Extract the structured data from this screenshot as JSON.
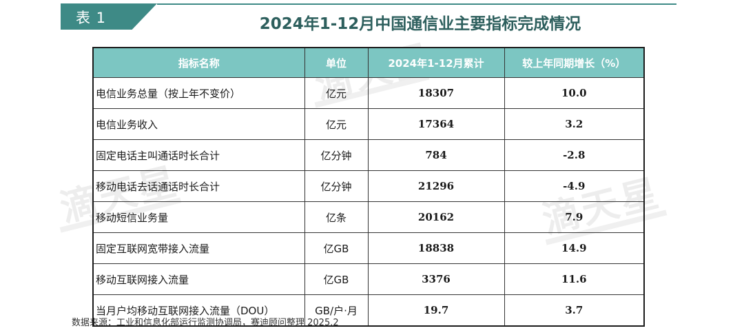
{
  "tag_label": "表 1",
  "title": "2024年1-12月中国通信业主要指标完成情况",
  "headers": [
    "指标名称",
    "单位",
    "2024年1-12月累计",
    "较上年同期增长（%）"
  ],
  "rows": [
    {
      "name": "电信业务总量（按上年不变价）",
      "unit": "亿元",
      "value": "18307",
      "growth": "10.0"
    },
    {
      "name": "电信业务收入",
      "unit": "亿元",
      "value": "17364",
      "growth": "3.2"
    },
    {
      "name": "固定电话主叫通话时长合计",
      "unit": "亿分钟",
      "value": "784",
      "growth": "-2.8"
    },
    {
      "name": "移动电话去话通话时长合计",
      "unit": "亿分钟",
      "value": "21296",
      "growth": "-4.9"
    },
    {
      "name": "移动短信业务量",
      "unit": "亿条",
      "value": "20162",
      "growth": "7.9"
    },
    {
      "name": "固定互联网宽带接入流量",
      "unit": "亿GB",
      "value": "18838",
      "growth": "14.9"
    },
    {
      "name": "移动互联网接入流量",
      "unit": "亿GB",
      "value": "3376",
      "growth": "11.6"
    },
    {
      "name": "当月户均移动互联网接入流量（DOU）",
      "unit": "GB/户·月",
      "value": "19.7",
      "growth": "3.7"
    }
  ],
  "source": "数据来源：工业和信息化部运行监测协调局，赛迪顾问整理 2025.2",
  "watermark": "滴天星",
  "colors": {
    "accent": "#3e8a86",
    "header_bg": "#7cc6c2",
    "title": "#2d5f5d"
  }
}
